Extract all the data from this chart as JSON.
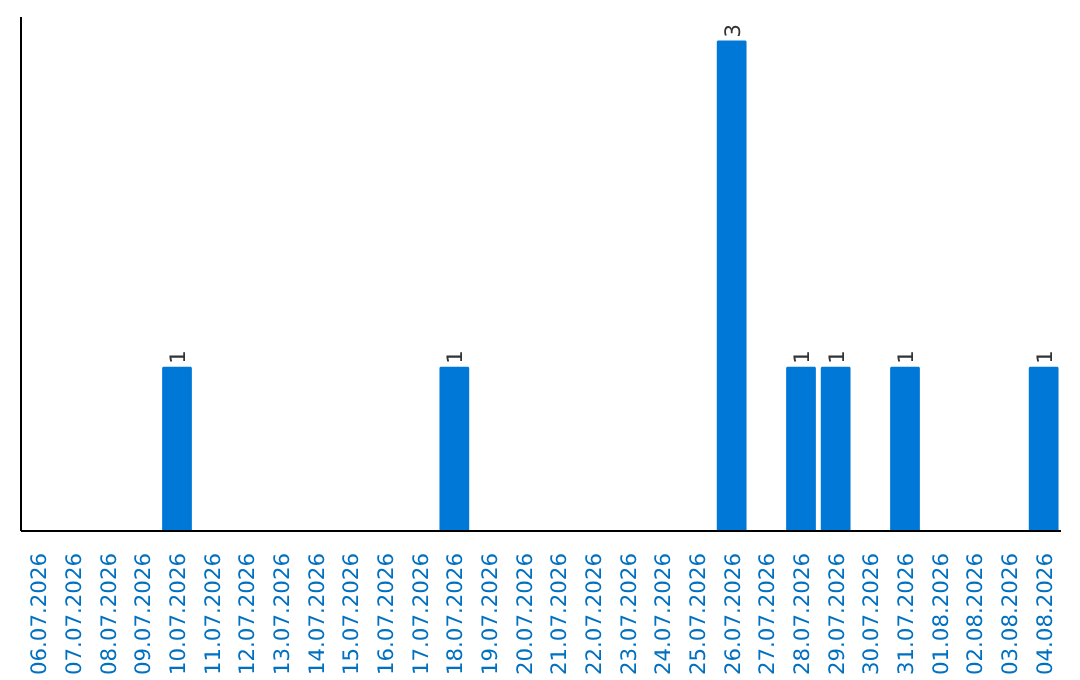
{
  "chart_data": {
    "type": "bar",
    "categories": [
      "06.07.2026",
      "07.07.2026",
      "08.07.2026",
      "09.07.2026",
      "10.07.2026",
      "11.07.2026",
      "12.07.2026",
      "13.07.2026",
      "14.07.2026",
      "15.07.2026",
      "16.07.2026",
      "17.07.2026",
      "18.07.2026",
      "19.07.2026",
      "20.07.2026",
      "21.07.2026",
      "22.07.2026",
      "23.07.2026",
      "24.07.2026",
      "25.07.2026",
      "26.07.2026",
      "27.07.2026",
      "28.07.2026",
      "29.07.2026",
      "30.07.2026",
      "31.07.2026",
      "01.08.2026",
      "02.08.2026",
      "03.08.2026",
      "04.08.2026"
    ],
    "values": [
      0,
      0,
      0,
      0,
      1,
      0,
      0,
      0,
      0,
      0,
      0,
      0,
      1,
      0,
      0,
      0,
      0,
      0,
      0,
      0,
      3,
      0,
      1,
      1,
      0,
      1,
      0,
      0,
      0,
      1
    ],
    "value_labels": [
      null,
      null,
      null,
      null,
      "1",
      null,
      null,
      null,
      null,
      null,
      null,
      null,
      "1",
      null,
      null,
      null,
      null,
      null,
      null,
      null,
      "3",
      null,
      "1",
      "1",
      null,
      "1",
      null,
      null,
      null,
      "1"
    ],
    "color": "#0078d7",
    "grid": false,
    "tick_labels": "x"
  }
}
